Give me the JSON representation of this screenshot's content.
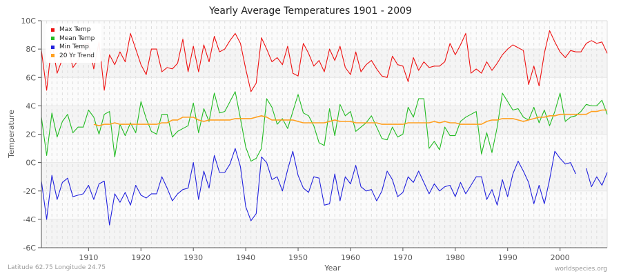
{
  "chart_data": {
    "type": "line",
    "title": "Yearly Average Temperatures 1901 - 2009",
    "xlabel": "Year",
    "ylabel": "Temperature",
    "xlim": [
      1901,
      2009
    ],
    "ylim": [
      -6,
      10
    ],
    "x_ticks": [
      1910,
      1920,
      1930,
      1940,
      1950,
      1960,
      1970,
      1980,
      1990,
      2000
    ],
    "y_ticks": [
      "-6C",
      "-4C",
      "-2C",
      "0C",
      "2C",
      "4C",
      "6C",
      "8C",
      "10C"
    ],
    "grid": true,
    "legend_position": "top-left",
    "x_start": 1901,
    "series": [
      {
        "name": "Max Temp",
        "color": "#ee1111",
        "values": [
          7.9,
          5.1,
          8.5,
          6.3,
          7.3,
          8.3,
          6.7,
          7.2,
          8.3,
          8.4,
          6.6,
          8.5,
          5.1,
          7.6,
          6.9,
          7.8,
          7.1,
          9.1,
          8.0,
          6.9,
          6.2,
          8.0,
          8.0,
          6.4,
          6.7,
          6.6,
          7.0,
          8.7,
          6.4,
          8.2,
          6.4,
          8.3,
          7.1,
          8.9,
          7.8,
          8.0,
          8.6,
          9.1,
          8.4,
          6.6,
          5.0,
          5.6,
          8.8,
          8.0,
          7.1,
          7.4,
          6.9,
          8.2,
          6.3,
          6.1,
          8.4,
          7.7,
          6.8,
          7.2,
          6.4,
          8.0,
          7.2,
          8.2,
          6.7,
          6.2,
          7.8,
          6.4,
          6.9,
          7.2,
          6.6,
          6.1,
          6.0,
          7.5,
          6.9,
          6.8,
          5.7,
          7.4,
          6.5,
          7.1,
          6.7,
          6.8,
          6.8,
          7.1,
          8.4,
          7.6,
          8.3,
          9.1,
          6.3,
          6.6,
          6.3,
          7.1,
          6.5,
          7.0,
          7.6,
          8.0,
          8.3,
          8.1,
          7.9,
          5.5,
          6.8,
          5.4,
          7.7,
          9.3,
          8.5,
          7.8,
          8.0,
          7.3,
          7.6,
          8.1,
          null,
          null,
          7.3,
          8.5,
          8.8
        ],
        "values_tail": [
          7.4,
          7.9,
          7.8,
          7.8,
          8.4,
          8.6,
          8.4,
          8.5,
          7.7
        ]
      },
      {
        "name": "Mean Temp",
        "color": "#22bb22",
        "values": [
          3.2,
          0.5,
          3.5,
          1.8,
          2.9,
          3.4,
          2.1,
          2.5,
          2.5,
          3.7,
          3.2,
          2.0,
          3.4,
          3.6,
          0.4,
          2.7,
          1.9,
          2.8,
          2.1,
          4.3,
          3.1,
          2.2,
          2.0,
          3.4,
          3.4,
          1.8,
          2.2,
          2.4,
          2.6,
          4.2,
          2.1,
          3.8,
          2.9,
          4.9,
          3.5,
          3.6,
          4.3,
          5.0,
          3.1,
          1.1,
          0.1,
          0.3,
          1.0,
          4.5,
          3.9,
          2.7,
          3.1,
          2.4,
          3.6,
          4.8,
          3.5,
          3.3,
          2.6,
          1.4,
          1.2,
          3.8,
          1.9,
          4.1,
          3.3,
          3.6,
          2.2,
          2.5,
          2.8,
          3.3,
          2.5,
          1.7,
          1.6,
          2.5,
          1.8,
          2.0,
          3.9,
          3.2,
          4.5,
          4.5,
          1.0,
          1.5,
          0.9,
          2.5,
          1.9,
          1.9,
          2.9,
          3.2,
          3.4,
          3.6,
          0.6,
          2.1,
          0.7,
          2.5,
          4.9,
          4.3,
          3.7,
          3.8,
          3.2,
          3.0,
          3.9,
          2.8,
          3.7,
          2.6,
          3.6,
          4.9,
          2.9,
          3.2,
          3.3,
          3.6,
          4.1,
          4.0,
          4.0,
          4.4,
          3.4
        ]
      },
      {
        "name": "Min Temp",
        "color": "#2222dd",
        "values": [
          -1.3,
          -4.0,
          -0.9,
          -2.6,
          -1.4,
          -1.1,
          -2.4,
          -2.3,
          -2.2,
          -1.6,
          -2.6,
          -1.5,
          -1.3,
          -4.4,
          -2.2,
          -2.8,
          -2.1,
          -3.0,
          -1.6,
          -2.3,
          -2.5,
          -2.2,
          -2.2,
          -1.0,
          -1.8,
          -2.7,
          -2.2,
          -1.9,
          -1.8,
          0.0,
          -2.6,
          -0.6,
          -1.8,
          0.5,
          -0.7,
          -0.7,
          -0.1,
          1.0,
          -0.3,
          -3.1,
          -4.1,
          -3.6,
          0.4,
          0.0,
          -1.2,
          -1.0,
          -2.0,
          -0.5,
          0.8,
          -0.9,
          -1.8,
          -2.1,
          -1.0,
          -1.1,
          -3.0,
          -2.9,
          -0.8,
          -2.7,
          -1.0,
          -1.5,
          -0.2,
          -1.7,
          -2.0,
          -1.9,
          -2.7,
          -2.0,
          -0.6,
          -1.2,
          -2.4,
          -2.1,
          -1.0,
          -1.4,
          -0.6,
          -1.4,
          -2.2,
          -1.5,
          -2.0,
          -1.7,
          -1.6,
          -2.4,
          -1.4,
          -2.2,
          -1.6,
          -1.0,
          -1.0,
          -2.6,
          -1.9,
          -3.0,
          -1.2,
          -2.4,
          -0.8,
          0.1,
          -0.6,
          -1.4,
          -2.9,
          -1.6,
          -2.9,
          -1.2,
          0.8,
          0.3,
          -0.1,
          0.0,
          -0.8,
          null,
          -0.4,
          -1.7,
          -1.0,
          -1.6,
          -0.7
        ]
      },
      {
        "name": "20 Yr Trend",
        "color": "#ffa020",
        "start_year": 1911,
        "values": [
          2.7,
          2.6,
          2.7,
          2.7,
          2.8,
          2.7,
          2.7,
          2.7,
          2.7,
          2.7,
          2.7,
          2.7,
          2.7,
          2.8,
          2.8,
          3.0,
          3.0,
          3.2,
          3.2,
          3.2,
          3.0,
          2.9,
          3.0,
          3.0,
          3.0,
          3.0,
          3.0,
          3.1,
          3.1,
          3.1,
          3.1,
          3.2,
          3.3,
          3.2,
          3.0,
          3.0,
          3.0,
          3.0,
          3.0,
          2.9,
          2.8,
          2.8,
          2.8,
          2.8,
          2.8,
          2.9,
          3.0,
          2.9,
          2.9,
          2.9,
          2.8,
          2.8,
          2.8,
          2.8,
          2.8,
          2.7,
          2.7,
          2.7,
          2.7,
          2.7,
          2.8,
          2.8,
          2.8,
          2.8,
          2.8,
          2.9,
          2.8,
          2.9,
          2.8,
          2.8,
          2.7,
          2.7,
          2.7,
          2.7,
          2.7,
          2.9,
          3.0,
          3.0,
          3.1,
          3.1,
          3.1,
          3.0,
          2.9,
          3.0,
          3.1,
          3.2,
          3.2,
          3.3,
          3.3,
          3.4,
          3.4,
          3.4,
          3.4,
          3.4,
          3.4,
          3.6,
          3.6,
          3.7,
          3.7
        ]
      }
    ]
  },
  "header": {
    "title": "Yearly Average Temperatures 1901 - 2009"
  },
  "legend": {
    "items": [
      {
        "label": "Max Temp",
        "color": "#ee1111"
      },
      {
        "label": "Mean Temp",
        "color": "#22bb22"
      },
      {
        "label": "Min Temp",
        "color": "#2222dd"
      },
      {
        "label": "20 Yr Trend",
        "color": "#ffa020"
      }
    ]
  },
  "axes": {
    "xlabel": "Year",
    "ylabel": "Temperature"
  },
  "footer": {
    "location": "Latitude 62.75 Longitude 24.75",
    "source": "worldspecies.org"
  }
}
